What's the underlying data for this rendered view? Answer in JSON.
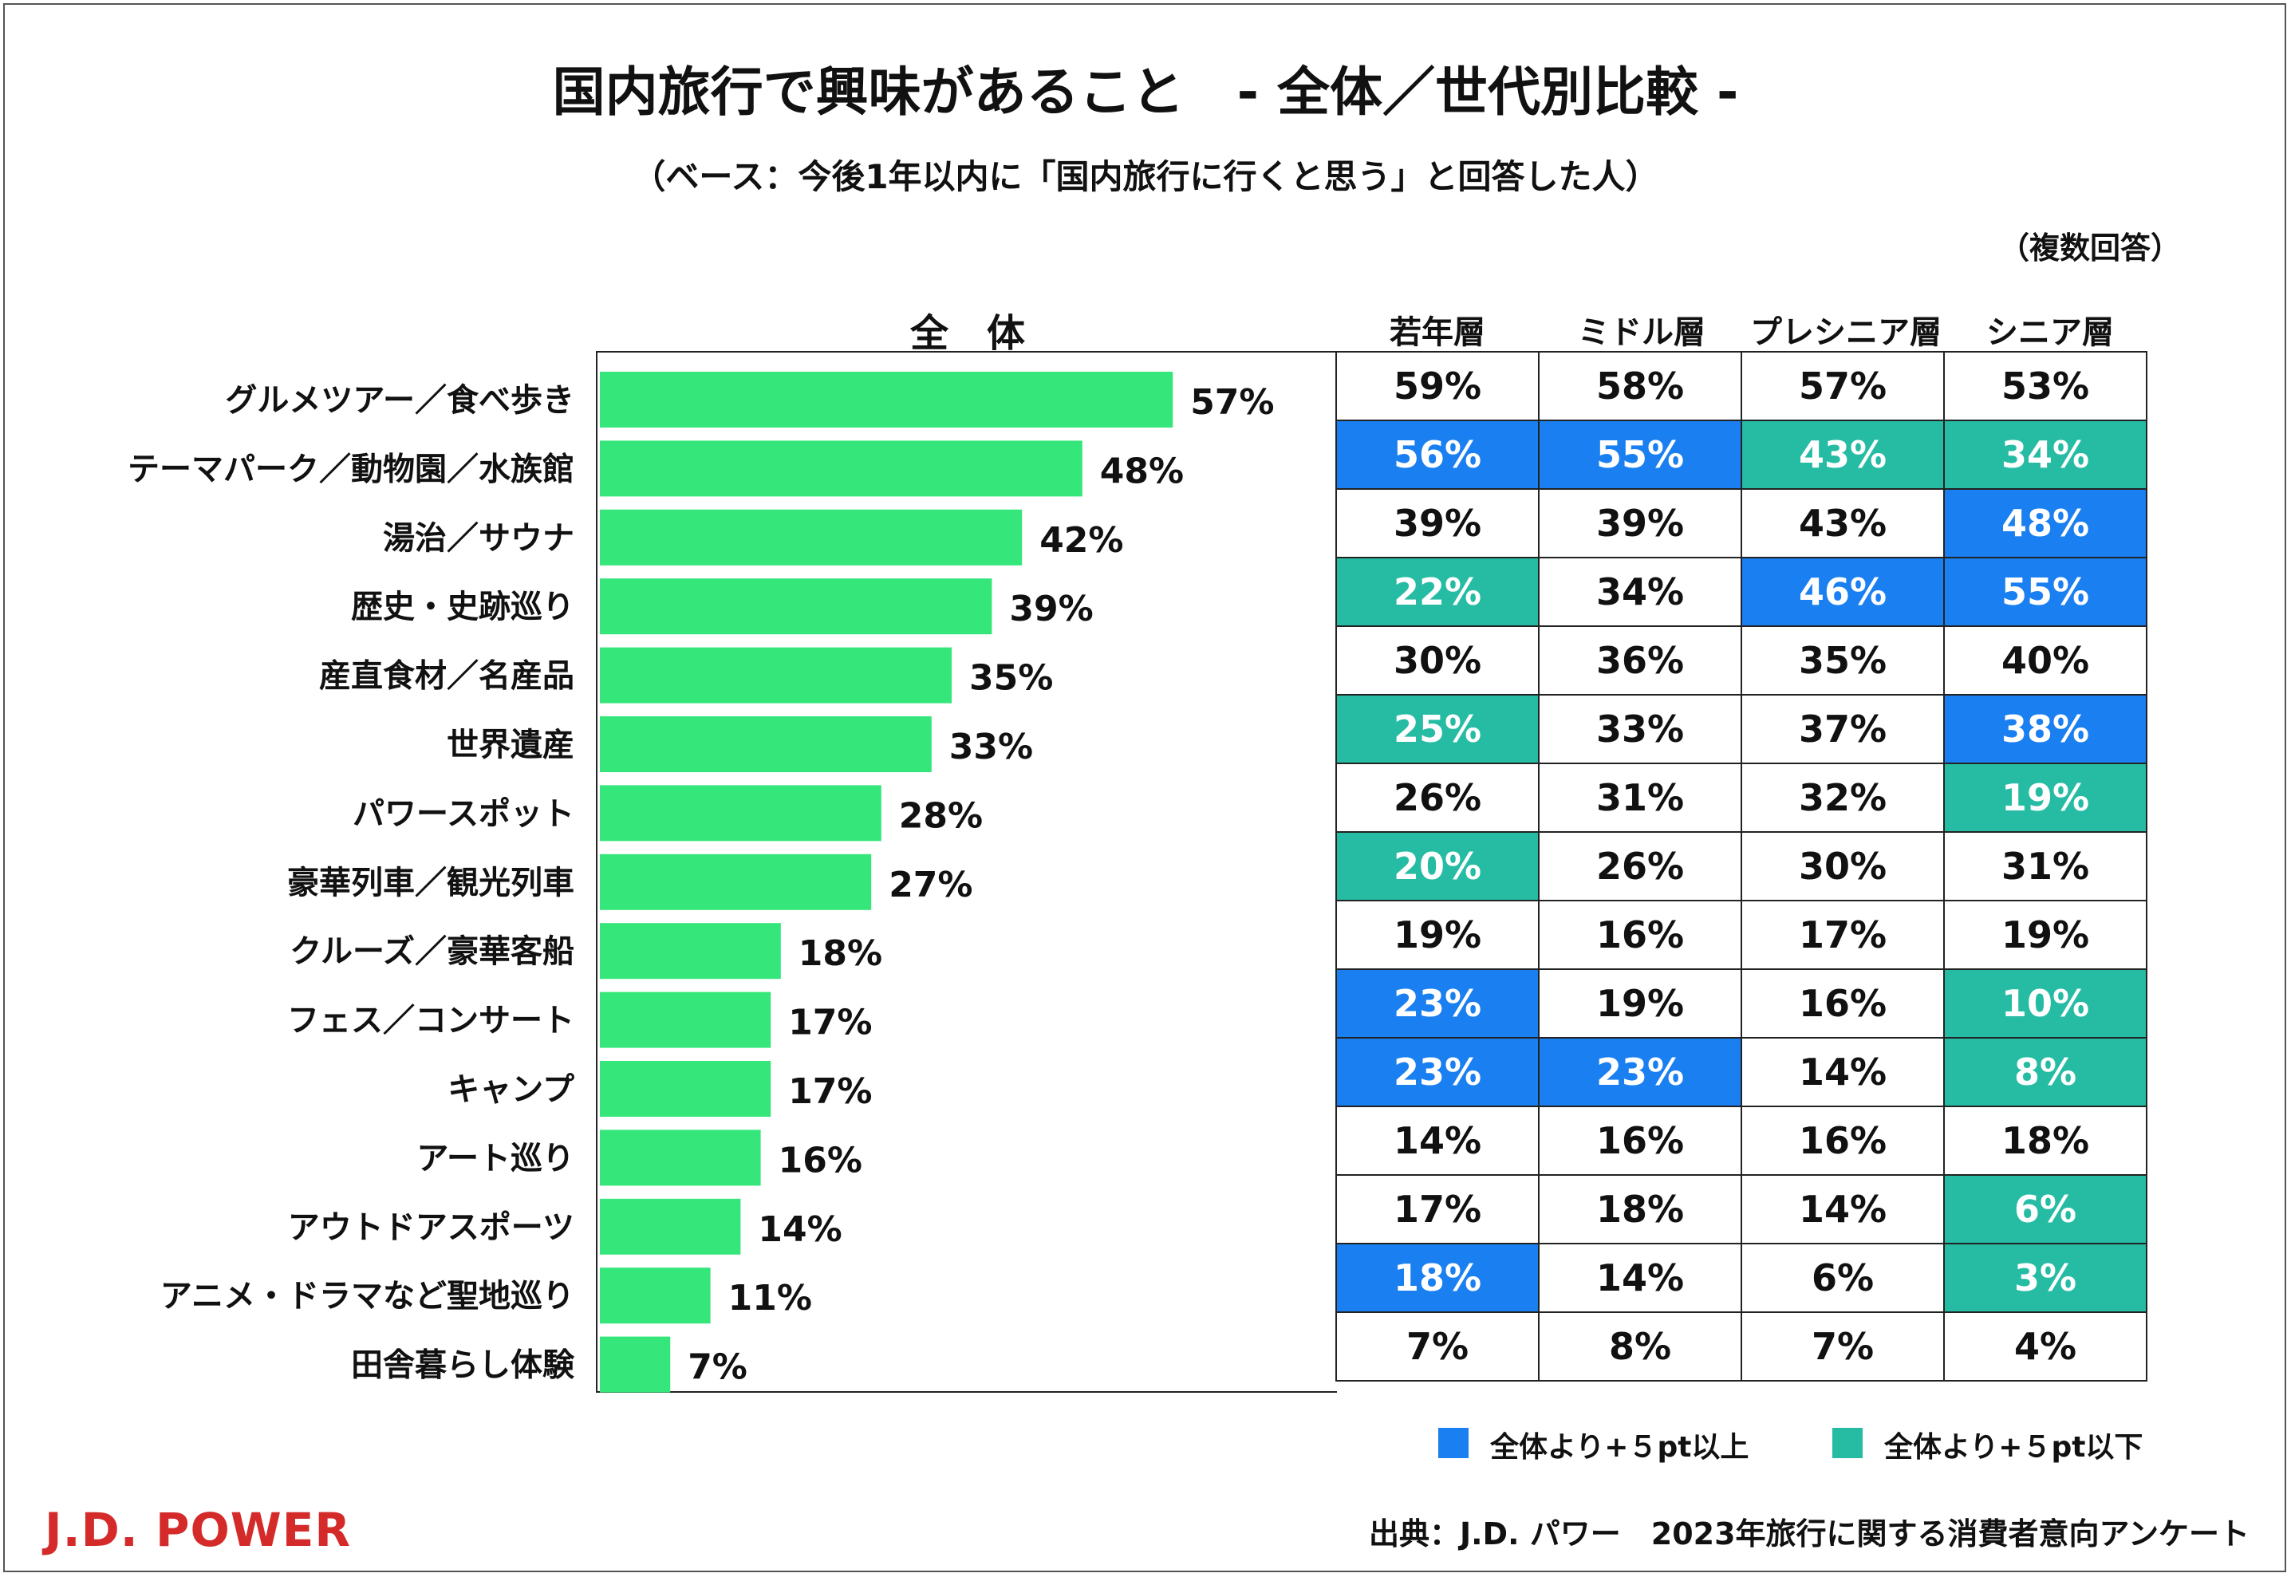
{
  "colors": {
    "bar": "#35e67a",
    "above": "#1a7ff0",
    "below": "#26bca4"
  },
  "header": {
    "title": "国内旅行で興味があること　- 全体／世代別比較 -",
    "subtitle": "（ベース：今後1年以内に「国内旅行に行くと思う」と回答した人）",
    "note": "（複数回答）"
  },
  "chart_data": {
    "type": "bar",
    "orientation": "horizontal",
    "title": "全　体",
    "unit": "%",
    "categories": [
      "グルメツアー／食べ歩き",
      "テーマパーク／動物園／水族館",
      "湯治／サウナ",
      "歴史・史跡巡り",
      "産直食材／名産品",
      "世界遺産",
      "パワースポット",
      "豪華列車／観光列車",
      "クルーズ／豪華客船",
      "フェス／コンサート",
      "キャンプ",
      "アート巡り",
      "アウトドアスポーツ",
      "アニメ・ドラマなど聖地巡り",
      "田舎暮らし体験"
    ],
    "values": [
      57,
      48,
      42,
      39,
      35,
      33,
      28,
      27,
      18,
      17,
      17,
      16,
      14,
      11,
      7
    ],
    "xlim": [
      0,
      100
    ]
  },
  "generations": {
    "headers": [
      "若年層",
      "ミドル層",
      "プレシニア層",
      "シニア層"
    ],
    "rows": [
      {
        "values": [
          59,
          58,
          57,
          53
        ],
        "flags": [
          "",
          "",
          "",
          ""
        ]
      },
      {
        "values": [
          56,
          55,
          43,
          34
        ],
        "flags": [
          "above",
          "above",
          "below",
          "below"
        ]
      },
      {
        "values": [
          39,
          39,
          43,
          48
        ],
        "flags": [
          "",
          "",
          "",
          "above"
        ]
      },
      {
        "values": [
          22,
          34,
          46,
          55
        ],
        "flags": [
          "below",
          "",
          "above",
          "above"
        ]
      },
      {
        "values": [
          30,
          36,
          35,
          40
        ],
        "flags": [
          "",
          "",
          "",
          ""
        ]
      },
      {
        "values": [
          25,
          33,
          37,
          38
        ],
        "flags": [
          "below",
          "",
          "",
          "above"
        ]
      },
      {
        "values": [
          26,
          31,
          32,
          19
        ],
        "flags": [
          "",
          "",
          "",
          "below"
        ]
      },
      {
        "values": [
          20,
          26,
          30,
          31
        ],
        "flags": [
          "below",
          "",
          "",
          ""
        ]
      },
      {
        "values": [
          19,
          16,
          17,
          19
        ],
        "flags": [
          "",
          "",
          "",
          ""
        ]
      },
      {
        "values": [
          23,
          19,
          16,
          10
        ],
        "flags": [
          "above",
          "",
          "",
          "below"
        ]
      },
      {
        "values": [
          23,
          23,
          14,
          8
        ],
        "flags": [
          "above",
          "above",
          "",
          "below"
        ]
      },
      {
        "values": [
          14,
          16,
          16,
          18
        ],
        "flags": [
          "",
          "",
          "",
          ""
        ]
      },
      {
        "values": [
          17,
          18,
          14,
          6
        ],
        "flags": [
          "",
          "",
          "",
          "below"
        ]
      },
      {
        "values": [
          18,
          14,
          6,
          3
        ],
        "flags": [
          "above",
          "",
          "",
          "below"
        ]
      },
      {
        "values": [
          7,
          8,
          7,
          4
        ],
        "flags": [
          "",
          "",
          "",
          ""
        ]
      }
    ]
  },
  "legend": {
    "above": "全体より+５pt以上",
    "below": "全体より+５pt以下"
  },
  "footer": {
    "source": "出典：J.D. パワー　2023年旅行に関する消費者意向アンケート",
    "logo": "J.D. POWER"
  }
}
